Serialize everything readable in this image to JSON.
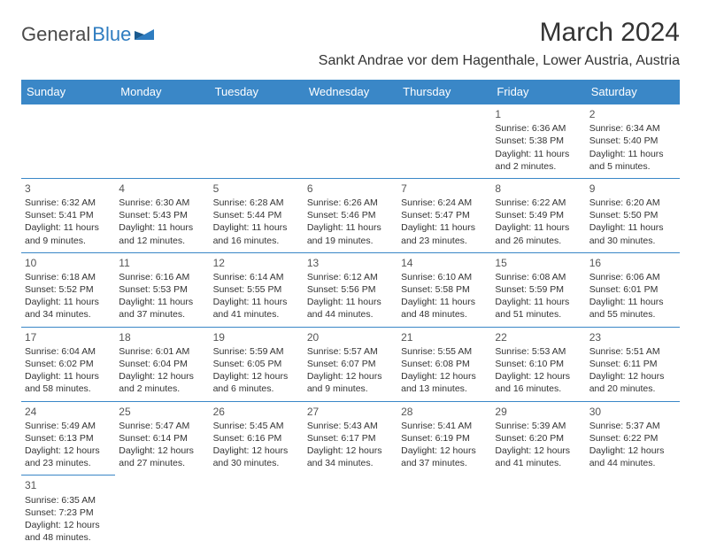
{
  "logo": {
    "text1": "General",
    "text2": "Blue"
  },
  "title": "March 2024",
  "location": "Sankt Andrae vor dem Hagenthale, Lower Austria, Austria",
  "dayHeaders": [
    "Sunday",
    "Monday",
    "Tuesday",
    "Wednesday",
    "Thursday",
    "Friday",
    "Saturday"
  ],
  "colors": {
    "headerBg": "#3a87c7",
    "headerText": "#ffffff",
    "border": "#3a87c7",
    "logoBlue": "#2e7cc0",
    "text": "#333333"
  },
  "weeks": [
    [
      null,
      null,
      null,
      null,
      null,
      {
        "d": "1",
        "sr": "Sunrise: 6:36 AM",
        "ss": "Sunset: 5:38 PM",
        "dl1": "Daylight: 11 hours",
        "dl2": "and 2 minutes."
      },
      {
        "d": "2",
        "sr": "Sunrise: 6:34 AM",
        "ss": "Sunset: 5:40 PM",
        "dl1": "Daylight: 11 hours",
        "dl2": "and 5 minutes."
      }
    ],
    [
      {
        "d": "3",
        "sr": "Sunrise: 6:32 AM",
        "ss": "Sunset: 5:41 PM",
        "dl1": "Daylight: 11 hours",
        "dl2": "and 9 minutes."
      },
      {
        "d": "4",
        "sr": "Sunrise: 6:30 AM",
        "ss": "Sunset: 5:43 PM",
        "dl1": "Daylight: 11 hours",
        "dl2": "and 12 minutes."
      },
      {
        "d": "5",
        "sr": "Sunrise: 6:28 AM",
        "ss": "Sunset: 5:44 PM",
        "dl1": "Daylight: 11 hours",
        "dl2": "and 16 minutes."
      },
      {
        "d": "6",
        "sr": "Sunrise: 6:26 AM",
        "ss": "Sunset: 5:46 PM",
        "dl1": "Daylight: 11 hours",
        "dl2": "and 19 minutes."
      },
      {
        "d": "7",
        "sr": "Sunrise: 6:24 AM",
        "ss": "Sunset: 5:47 PM",
        "dl1": "Daylight: 11 hours",
        "dl2": "and 23 minutes."
      },
      {
        "d": "8",
        "sr": "Sunrise: 6:22 AM",
        "ss": "Sunset: 5:49 PM",
        "dl1": "Daylight: 11 hours",
        "dl2": "and 26 minutes."
      },
      {
        "d": "9",
        "sr": "Sunrise: 6:20 AM",
        "ss": "Sunset: 5:50 PM",
        "dl1": "Daylight: 11 hours",
        "dl2": "and 30 minutes."
      }
    ],
    [
      {
        "d": "10",
        "sr": "Sunrise: 6:18 AM",
        "ss": "Sunset: 5:52 PM",
        "dl1": "Daylight: 11 hours",
        "dl2": "and 34 minutes."
      },
      {
        "d": "11",
        "sr": "Sunrise: 6:16 AM",
        "ss": "Sunset: 5:53 PM",
        "dl1": "Daylight: 11 hours",
        "dl2": "and 37 minutes."
      },
      {
        "d": "12",
        "sr": "Sunrise: 6:14 AM",
        "ss": "Sunset: 5:55 PM",
        "dl1": "Daylight: 11 hours",
        "dl2": "and 41 minutes."
      },
      {
        "d": "13",
        "sr": "Sunrise: 6:12 AM",
        "ss": "Sunset: 5:56 PM",
        "dl1": "Daylight: 11 hours",
        "dl2": "and 44 minutes."
      },
      {
        "d": "14",
        "sr": "Sunrise: 6:10 AM",
        "ss": "Sunset: 5:58 PM",
        "dl1": "Daylight: 11 hours",
        "dl2": "and 48 minutes."
      },
      {
        "d": "15",
        "sr": "Sunrise: 6:08 AM",
        "ss": "Sunset: 5:59 PM",
        "dl1": "Daylight: 11 hours",
        "dl2": "and 51 minutes."
      },
      {
        "d": "16",
        "sr": "Sunrise: 6:06 AM",
        "ss": "Sunset: 6:01 PM",
        "dl1": "Daylight: 11 hours",
        "dl2": "and 55 minutes."
      }
    ],
    [
      {
        "d": "17",
        "sr": "Sunrise: 6:04 AM",
        "ss": "Sunset: 6:02 PM",
        "dl1": "Daylight: 11 hours",
        "dl2": "and 58 minutes."
      },
      {
        "d": "18",
        "sr": "Sunrise: 6:01 AM",
        "ss": "Sunset: 6:04 PM",
        "dl1": "Daylight: 12 hours",
        "dl2": "and 2 minutes."
      },
      {
        "d": "19",
        "sr": "Sunrise: 5:59 AM",
        "ss": "Sunset: 6:05 PM",
        "dl1": "Daylight: 12 hours",
        "dl2": "and 6 minutes."
      },
      {
        "d": "20",
        "sr": "Sunrise: 5:57 AM",
        "ss": "Sunset: 6:07 PM",
        "dl1": "Daylight: 12 hours",
        "dl2": "and 9 minutes."
      },
      {
        "d": "21",
        "sr": "Sunrise: 5:55 AM",
        "ss": "Sunset: 6:08 PM",
        "dl1": "Daylight: 12 hours",
        "dl2": "and 13 minutes."
      },
      {
        "d": "22",
        "sr": "Sunrise: 5:53 AM",
        "ss": "Sunset: 6:10 PM",
        "dl1": "Daylight: 12 hours",
        "dl2": "and 16 minutes."
      },
      {
        "d": "23",
        "sr": "Sunrise: 5:51 AM",
        "ss": "Sunset: 6:11 PM",
        "dl1": "Daylight: 12 hours",
        "dl2": "and 20 minutes."
      }
    ],
    [
      {
        "d": "24",
        "sr": "Sunrise: 5:49 AM",
        "ss": "Sunset: 6:13 PM",
        "dl1": "Daylight: 12 hours",
        "dl2": "and 23 minutes."
      },
      {
        "d": "25",
        "sr": "Sunrise: 5:47 AM",
        "ss": "Sunset: 6:14 PM",
        "dl1": "Daylight: 12 hours",
        "dl2": "and 27 minutes."
      },
      {
        "d": "26",
        "sr": "Sunrise: 5:45 AM",
        "ss": "Sunset: 6:16 PM",
        "dl1": "Daylight: 12 hours",
        "dl2": "and 30 minutes."
      },
      {
        "d": "27",
        "sr": "Sunrise: 5:43 AM",
        "ss": "Sunset: 6:17 PM",
        "dl1": "Daylight: 12 hours",
        "dl2": "and 34 minutes."
      },
      {
        "d": "28",
        "sr": "Sunrise: 5:41 AM",
        "ss": "Sunset: 6:19 PM",
        "dl1": "Daylight: 12 hours",
        "dl2": "and 37 minutes."
      },
      {
        "d": "29",
        "sr": "Sunrise: 5:39 AM",
        "ss": "Sunset: 6:20 PM",
        "dl1": "Daylight: 12 hours",
        "dl2": "and 41 minutes."
      },
      {
        "d": "30",
        "sr": "Sunrise: 5:37 AM",
        "ss": "Sunset: 6:22 PM",
        "dl1": "Daylight: 12 hours",
        "dl2": "and 44 minutes."
      }
    ],
    [
      {
        "d": "31",
        "sr": "Sunrise: 6:35 AM",
        "ss": "Sunset: 7:23 PM",
        "dl1": "Daylight: 12 hours",
        "dl2": "and 48 minutes."
      },
      null,
      null,
      null,
      null,
      null,
      null
    ]
  ]
}
